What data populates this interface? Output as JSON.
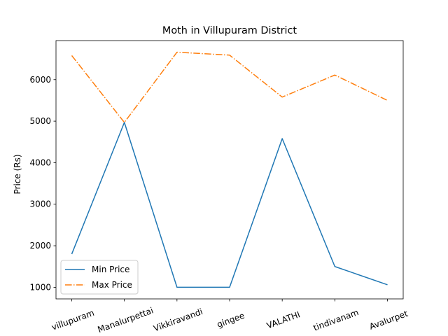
{
  "chart_data": {
    "type": "line",
    "title": "Moth in Villupuram District",
    "xlabel": "",
    "ylabel": "Price (Rs)",
    "categories": [
      "villupuram",
      "Manalurpettai",
      "Vikkiravandi",
      "gingee",
      "VALATHI",
      "tindivanam",
      "Avalurpet"
    ],
    "series": [
      {
        "name": "Min Price",
        "values": [
          1800,
          4970,
          1000,
          1000,
          4580,
          1500,
          1060
        ],
        "color": "#1f77b4",
        "style": "solid"
      },
      {
        "name": "Max Price",
        "values": [
          6580,
          4970,
          6660,
          6590,
          5580,
          6110,
          5500
        ],
        "color": "#ff7f0e",
        "style": "dashdot"
      }
    ],
    "ylim": [
      720,
      6940
    ],
    "yticks": [
      1000,
      2000,
      3000,
      4000,
      5000,
      6000
    ],
    "grid": false,
    "legend": "lower-left"
  }
}
